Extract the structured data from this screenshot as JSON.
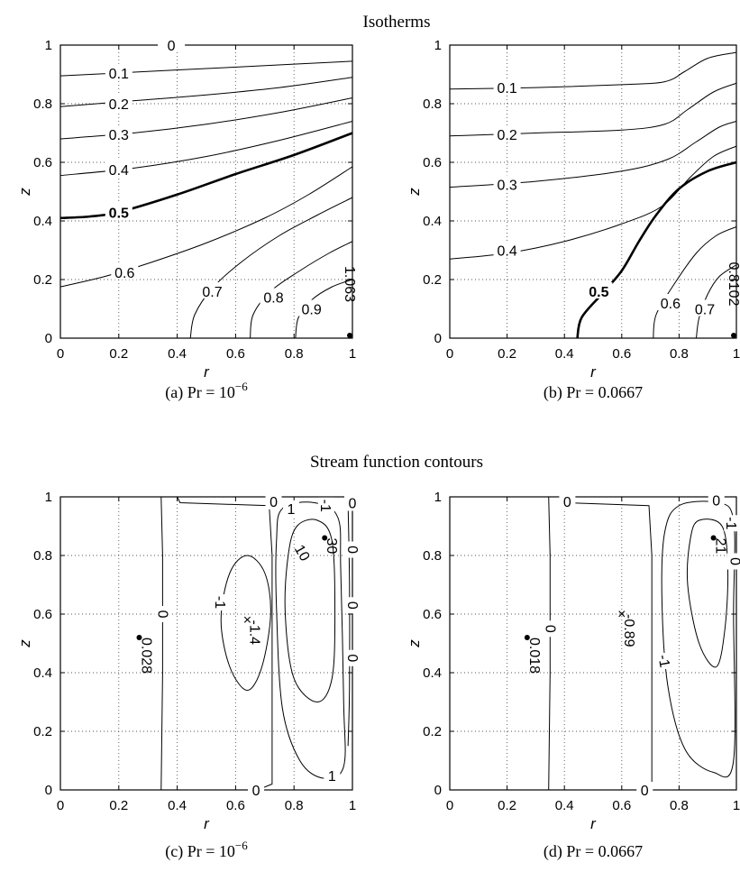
{
  "figure": {
    "top_title": "Isotherms",
    "bottom_title": "Stream function contours"
  },
  "chart_data": [
    {
      "type": "contour",
      "panel": "a",
      "caption_prefix": "(a) Pr = 10",
      "caption_exp": "−6",
      "xlabel": "r",
      "ylabel": "z",
      "xlim": [
        0,
        1
      ],
      "ylim": [
        0,
        1
      ],
      "xticks": [
        "0",
        "0.2",
        "0.4",
        "0.6",
        "0.8",
        "1"
      ],
      "yticks": [
        "0",
        "0.2",
        "0.4",
        "0.6",
        "0.8",
        "1"
      ],
      "grid": true,
      "levels": [
        "0",
        "0.1",
        "0.2",
        "0.3",
        "0.4",
        "0.5",
        "0.6",
        "0.7",
        "0.8",
        "0.9"
      ],
      "extremum_label": "1.063",
      "extremum_point": [
        1.0,
        0.0
      ],
      "contours": [
        {
          "level": "0",
          "points": [
            [
              0,
              1
            ],
            [
              0.47,
              1
            ]
          ],
          "label_at": [
            0.38,
            1.0
          ]
        },
        {
          "level": "0.1",
          "points": [
            [
              0,
              0.895
            ],
            [
              0.2,
              0.905
            ],
            [
              0.5,
              0.92
            ],
            [
              0.8,
              0.935
            ],
            [
              1,
              0.945
            ]
          ],
          "label_at": [
            0.2,
            0.905
          ]
        },
        {
          "level": "0.2",
          "points": [
            [
              0,
              0.79
            ],
            [
              0.25,
              0.81
            ],
            [
              0.5,
              0.83
            ],
            [
              0.75,
              0.855
            ],
            [
              1,
              0.89
            ]
          ],
          "label_at": [
            0.2,
            0.8
          ]
        },
        {
          "level": "0.3",
          "points": [
            [
              0,
              0.68
            ],
            [
              0.25,
              0.7
            ],
            [
              0.5,
              0.73
            ],
            [
              0.75,
              0.77
            ],
            [
              1,
              0.82
            ]
          ],
          "label_at": [
            0.2,
            0.695
          ]
        },
        {
          "level": "0.4",
          "points": [
            [
              0,
              0.555
            ],
            [
              0.25,
              0.58
            ],
            [
              0.5,
              0.62
            ],
            [
              0.75,
              0.675
            ],
            [
              1,
              0.74
            ]
          ],
          "label_at": [
            0.2,
            0.575
          ]
        },
        {
          "level": "0.5",
          "bold": true,
          "points": [
            [
              0,
              0.41
            ],
            [
              0.1,
              0.415
            ],
            [
              0.2,
              0.43
            ],
            [
              0.4,
              0.49
            ],
            [
              0.6,
              0.56
            ],
            [
              0.8,
              0.625
            ],
            [
              1,
              0.7
            ]
          ],
          "label_at": [
            0.2,
            0.43
          ]
        },
        {
          "level": "0.6",
          "points": [
            [
              0,
              0.175
            ],
            [
              0.15,
              0.21
            ],
            [
              0.3,
              0.255
            ],
            [
              0.5,
              0.325
            ],
            [
              0.7,
              0.41
            ],
            [
              0.85,
              0.49
            ],
            [
              1,
              0.585
            ]
          ],
          "label_at": [
            0.22,
            0.225
          ]
        },
        {
          "level": "0.7",
          "points": [
            [
              0.445,
              0
            ],
            [
              0.46,
              0.08
            ],
            [
              0.52,
              0.17
            ],
            [
              0.62,
              0.26
            ],
            [
              0.75,
              0.35
            ],
            [
              0.88,
              0.42
            ],
            [
              1,
              0.48
            ]
          ],
          "label_at": [
            0.52,
            0.16
          ]
        },
        {
          "level": "0.8",
          "points": [
            [
              0.65,
              0
            ],
            [
              0.66,
              0.08
            ],
            [
              0.72,
              0.16
            ],
            [
              0.82,
              0.23
            ],
            [
              0.92,
              0.29
            ],
            [
              1,
              0.33
            ]
          ],
          "label_at": [
            0.73,
            0.14
          ]
        },
        {
          "level": "0.9",
          "points": [
            [
              0.805,
              0
            ],
            [
              0.815,
              0.07
            ],
            [
              0.86,
              0.13
            ],
            [
              0.93,
              0.175
            ],
            [
              1,
              0.2
            ]
          ],
          "label_at": [
            0.86,
            0.1
          ]
        }
      ]
    },
    {
      "type": "contour",
      "panel": "b",
      "caption_prefix": "(b) Pr = 0.0667",
      "caption_exp": "",
      "xlabel": "r",
      "ylabel": "z",
      "xlim": [
        0,
        1
      ],
      "ylim": [
        0,
        1
      ],
      "xticks": [
        "0",
        "0.2",
        "0.4",
        "0.6",
        "0.8",
        "1"
      ],
      "yticks": [
        "0",
        "0.2",
        "0.4",
        "0.6",
        "0.8",
        "1"
      ],
      "grid": true,
      "levels": [
        "0.1",
        "0.2",
        "0.3",
        "0.4",
        "0.5",
        "0.6",
        "0.7"
      ],
      "extremum_label": "0.8102",
      "extremum_point": [
        1.0,
        0.0
      ],
      "contours": [
        {
          "level": "0.1",
          "points": [
            [
              0,
              0.85
            ],
            [
              0.3,
              0.855
            ],
            [
              0.6,
              0.865
            ],
            [
              0.75,
              0.875
            ],
            [
              0.82,
              0.91
            ],
            [
              0.9,
              0.955
            ],
            [
              1,
              0.975
            ]
          ],
          "label_at": [
            0.2,
            0.855
          ]
        },
        {
          "level": "0.2",
          "points": [
            [
              0,
              0.69
            ],
            [
              0.3,
              0.7
            ],
            [
              0.6,
              0.71
            ],
            [
              0.75,
              0.73
            ],
            [
              0.83,
              0.78
            ],
            [
              0.92,
              0.84
            ],
            [
              1,
              0.87
            ]
          ],
          "label_at": [
            0.2,
            0.695
          ]
        },
        {
          "level": "0.3",
          "points": [
            [
              0,
              0.515
            ],
            [
              0.3,
              0.535
            ],
            [
              0.6,
              0.57
            ],
            [
              0.76,
              0.61
            ],
            [
              0.86,
              0.67
            ],
            [
              0.94,
              0.72
            ],
            [
              1,
              0.74
            ]
          ],
          "label_at": [
            0.2,
            0.525
          ]
        },
        {
          "level": "0.4",
          "points": [
            [
              0,
              0.27
            ],
            [
              0.2,
              0.29
            ],
            [
              0.4,
              0.33
            ],
            [
              0.6,
              0.39
            ],
            [
              0.74,
              0.45
            ],
            [
              0.84,
              0.55
            ],
            [
              0.92,
              0.62
            ],
            [
              1,
              0.655
            ]
          ],
          "label_at": [
            0.2,
            0.3
          ]
        },
        {
          "level": "0.5",
          "bold": true,
          "points": [
            [
              0.445,
              0
            ],
            [
              0.46,
              0.07
            ],
            [
              0.53,
              0.15
            ],
            [
              0.6,
              0.23
            ],
            [
              0.66,
              0.33
            ],
            [
              0.72,
              0.42
            ],
            [
              0.8,
              0.51
            ],
            [
              0.9,
              0.57
            ],
            [
              1,
              0.6
            ]
          ],
          "label_at": [
            0.52,
            0.16
          ]
        },
        {
          "level": "0.6",
          "points": [
            [
              0.71,
              0
            ],
            [
              0.72,
              0.08
            ],
            [
              0.78,
              0.18
            ],
            [
              0.86,
              0.29
            ],
            [
              0.93,
              0.35
            ],
            [
              1,
              0.38
            ]
          ],
          "label_at": [
            0.77,
            0.12
          ]
        },
        {
          "level": "0.7",
          "points": [
            [
              0.86,
              0
            ],
            [
              0.87,
              0.07
            ],
            [
              0.9,
              0.15
            ],
            [
              0.94,
              0.21
            ],
            [
              1,
              0.25
            ]
          ],
          "label_at": [
            0.89,
            0.1
          ]
        }
      ]
    },
    {
      "type": "contour",
      "panel": "c",
      "caption_prefix": "(c) Pr = 10",
      "caption_exp": "−6",
      "xlabel": "r",
      "ylabel": "z",
      "xlim": [
        0,
        1
      ],
      "ylim": [
        0,
        1
      ],
      "xticks": [
        "0",
        "0.2",
        "0.4",
        "0.6",
        "0.8",
        "1"
      ],
      "yticks": [
        "0",
        "0.2",
        "0.4",
        "0.6",
        "0.8",
        "1"
      ],
      "grid": true,
      "labels": [
        {
          "text": "0",
          "at": [
            0.35,
            0.6
          ],
          "rot": -90
        },
        {
          "text": "0",
          "at": [
            0.73,
            0.985
          ],
          "rot": 0
        },
        {
          "text": "0",
          "at": [
            0.67,
            0.0
          ],
          "rot": 0
        },
        {
          "text": "-1",
          "at": [
            0.55,
            0.64
          ],
          "rot": 90
        },
        {
          "text": "1",
          "at": [
            0.79,
            0.96
          ],
          "rot": 0
        },
        {
          "text": "10",
          "at": [
            0.83,
            0.81
          ],
          "rot": 60
        },
        {
          "text": "-1",
          "at": [
            0.91,
            0.97
          ],
          "rot": 90
        },
        {
          "text": "0",
          "at": [
            1.0,
            0.98
          ],
          "rot": 0
        },
        {
          "text": "0",
          "at": [
            1.0,
            0.82
          ],
          "rot": -90
        },
        {
          "text": "0",
          "at": [
            1.0,
            0.63
          ],
          "rot": -90
        },
        {
          "text": "0",
          "at": [
            1.0,
            0.45
          ],
          "rot": -90
        },
        {
          "text": "1",
          "at": [
            0.93,
            0.05
          ],
          "rot": 0
        }
      ],
      "extrema": [
        {
          "label": "0.028",
          "marker": "dot",
          "at": [
            0.27,
            0.52
          ]
        },
        {
          "label": "-1.4",
          "marker": "cross",
          "at": [
            0.64,
            0.58
          ]
        },
        {
          "label": "30",
          "marker": "dot",
          "at": [
            0.905,
            0.86
          ]
        }
      ]
    },
    {
      "type": "contour",
      "panel": "d",
      "caption_prefix": "(d) Pr = 0.0667",
      "caption_exp": "",
      "xlabel": "r",
      "ylabel": "z",
      "xlim": [
        0,
        1
      ],
      "ylim": [
        0,
        1
      ],
      "xticks": [
        "0",
        "0.2",
        "0.4",
        "0.6",
        "0.8",
        "1"
      ],
      "yticks": [
        "0",
        "0.2",
        "0.4",
        "0.6",
        "0.8",
        "1"
      ],
      "grid": true,
      "labels": [
        {
          "text": "0",
          "at": [
            0.35,
            0.55
          ],
          "rot": -90
        },
        {
          "text": "0",
          "at": [
            0.41,
            0.985
          ],
          "rot": 0
        },
        {
          "text": "0",
          "at": [
            0.68,
            0.0
          ],
          "rot": 0
        },
        {
          "text": "-1",
          "at": [
            0.75,
            0.44
          ],
          "rot": 80
        },
        {
          "text": "0",
          "at": [
            0.93,
            0.99
          ],
          "rot": 0
        },
        {
          "text": "-1",
          "at": [
            0.985,
            0.91
          ],
          "rot": 90
        },
        {
          "text": "0",
          "at": [
            0.995,
            0.78
          ],
          "rot": -90
        }
      ],
      "extrema": [
        {
          "label": "0.018",
          "marker": "dot",
          "at": [
            0.27,
            0.52
          ]
        },
        {
          "label": "-0.89",
          "marker": "cross",
          "at": [
            0.6,
            0.6
          ]
        },
        {
          "label": "21",
          "marker": "dot",
          "at": [
            0.92,
            0.86
          ]
        }
      ]
    }
  ]
}
